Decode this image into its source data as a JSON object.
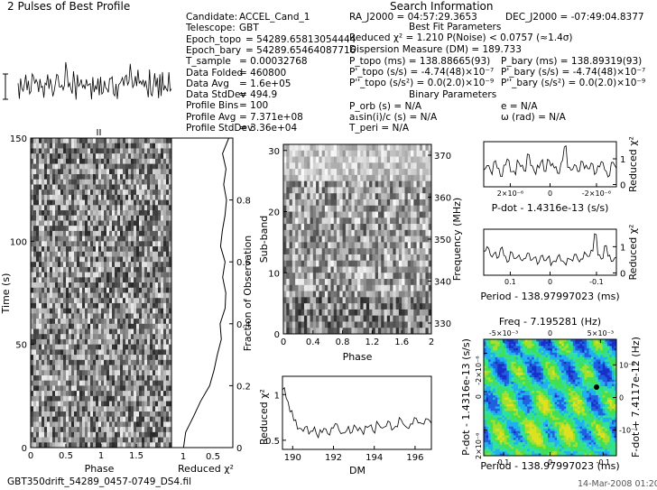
{
  "header": {
    "title": "2 Pulses of Best Profile",
    "search_info": "Search Information"
  },
  "params_left": [
    {
      "k": "Candidate:",
      "v": "ACCEL_Cand_1"
    },
    {
      "k": "Telescope:",
      "v": "GBT"
    },
    {
      "k": "Epoch_topo",
      "v": "= 54289.65813054444"
    },
    {
      "k": "Epoch_bary",
      "v": "= 54289.65464087716"
    },
    {
      "k": "T_sample",
      "v": "0.00032768"
    },
    {
      "k": "Data Folded",
      "v": "460800"
    },
    {
      "k": "Data Avg",
      "v": "1.6e+05"
    },
    {
      "k": "Data StdDev",
      "v": "494.9"
    },
    {
      "k": "Profile Bins",
      "v": "100"
    },
    {
      "k": "Profile Avg",
      "v": "7.371e+08"
    },
    {
      "k": "Profile StdDev",
      "v": "3.36e+04"
    }
  ],
  "params_right": {
    "ra": "RA_J2000 = 04:57:29.3653",
    "dec": "DEC_J2000 = -07:49:04.8377",
    "best_fit_title": "Best Fit Parameters",
    "chi2": "Reduced χ² = 1.210   P(Noise) < 0.0757   (≈1.4σ)",
    "dm": "Dispersion Measure (DM) = 189.733",
    "p_topo": "P_topo (ms) = 138.88665(93)",
    "pd_topo": "P'_topo (s/s) = -4.74(48)×10⁻⁷",
    "pdd_topo": "P''_topo (s/s²) = 0.0(2.0)×10⁻⁹",
    "p_bary": "P_bary (ms) = 138.89319(93)",
    "pd_bary": "P'_bary (s/s) = -4.74(48)×10⁻⁷",
    "pdd_bary": "P''_bary (s/s²) = 0.0(2.0)×10⁻⁹",
    "binary_title": "Binary Parameters",
    "porb": "P_orb (s) = N/A",
    "asini": "a₁sin(i)/c (s) = N/A",
    "tperi": "T_peri = N/A",
    "ecc": "e = N/A",
    "omega": "ω (rad) = N/A"
  },
  "footer": {
    "filename": "GBT350drift_54289_0457-0749_DS4.fil",
    "timestamp": "14-Mar-2008 01:20"
  },
  "colors": {
    "line": "#000000",
    "map_low": "#1030d0",
    "map_mid": "#20c0f0",
    "map_high": "#30e060",
    "map_peak": "#e0e020"
  },
  "chart_data": [
    {
      "id": "profile",
      "type": "line",
      "title": "2 Pulses of Best Profile",
      "x": "phase 0-2",
      "note": "noisy pulse profile, two cycles",
      "values": [
        0.2,
        -0.4,
        0.8,
        0.1,
        -0.6,
        0.3,
        1.2,
        -0.2,
        0.5,
        -0.9,
        0.4,
        0.0,
        1.6,
        -0.3,
        0.7,
        0.2,
        -0.5,
        1.0,
        -0.1,
        0.3,
        -0.8,
        0.6,
        0.2,
        1.4,
        -0.4,
        0.1,
        0.9,
        -0.6,
        0.3,
        -0.2,
        0.5,
        1.1,
        -0.3,
        0.0,
        0.7,
        -0.5,
        0.2,
        1.3,
        0.4,
        -0.7,
        0.6,
        0.1,
        -0.2,
        0.9,
        0.3,
        -0.4,
        1.0,
        0.2,
        -0.1,
        0.5
      ]
    },
    {
      "id": "time_phase",
      "type": "heatmap",
      "xlabel": "Phase",
      "ylabel": "Time (s)",
      "xlim": [
        0,
        2
      ],
      "ylim": [
        0,
        150
      ],
      "xticks": [
        "0",
        "0.5",
        "1",
        "1.5"
      ],
      "yticks": [
        "0",
        "50",
        "100",
        "150"
      ]
    },
    {
      "id": "time_chi2",
      "type": "line",
      "xlabel": "Reduced χ²",
      "ylabel_right": "Fraction of Observation",
      "yticks_right": [
        "0",
        "0.2",
        "0.4",
        "0.6",
        "0.8"
      ],
      "xticks": [
        "1",
        "0.5"
      ],
      "y": [
        0,
        0.05,
        0.1,
        0.15,
        0.2,
        0.25,
        0.3,
        0.35,
        0.4,
        0.45,
        0.5,
        0.55,
        0.6,
        0.65,
        0.7,
        0.75,
        0.8,
        0.85,
        0.9,
        0.95,
        1.0
      ],
      "x": [
        0.2,
        0.3,
        0.5,
        0.8,
        1.0,
        1.2,
        1.3,
        1.4,
        1.4,
        1.5,
        1.5,
        1.4,
        1.5,
        1.4,
        1.4,
        1.5,
        1.6,
        1.5,
        1.6,
        1.5,
        1.6
      ]
    },
    {
      "id": "subband_phase",
      "type": "heatmap",
      "xlabel": "Phase",
      "ylabel": "Sub-band",
      "ylabel_right": "Frequency (MHz)",
      "xlim": [
        0,
        2
      ],
      "ylim": [
        0,
        31
      ],
      "xticks": [
        "0",
        "0.4",
        "0.8",
        "1.2",
        "1.6",
        "2"
      ],
      "yticks": [
        "0",
        "10",
        "20",
        "30"
      ],
      "yticks_right": [
        "330",
        "340",
        "350",
        "360",
        "370"
      ]
    },
    {
      "id": "dm_chi2",
      "type": "line",
      "xlabel": "DM",
      "ylabel": "Reduced χ²",
      "xlim": [
        189.5,
        196.8
      ],
      "ylim": [
        0.4,
        1.2
      ],
      "xticks": [
        "190",
        "192",
        "194",
        "196"
      ],
      "yticks": [
        "0.5",
        "1"
      ],
      "values": [
        1.05,
        0.95,
        0.82,
        0.7,
        0.65,
        0.6,
        0.63,
        0.58,
        0.62,
        0.55,
        0.6,
        0.64,
        0.58,
        0.62,
        0.66,
        0.6,
        0.57,
        0.63,
        0.6,
        0.65,
        0.62,
        0.58,
        0.66,
        0.64,
        0.6,
        0.68,
        0.62,
        0.66,
        0.7,
        0.64,
        0.66,
        0.72,
        0.68,
        0.65,
        0.7,
        0.74,
        0.7,
        0.68,
        0.72,
        0.7
      ]
    },
    {
      "id": "pdot_chi2",
      "type": "line",
      "xlabel": "P-dot - 1.4316e-13 (s/s)",
      "ylabel": "Reduced χ²",
      "xticks": [
        "2×10⁻⁶",
        "0",
        "-2×10⁻⁶"
      ],
      "yticks": [
        "0",
        "1"
      ],
      "values": [
        0.6,
        0.8,
        0.5,
        0.9,
        0.7,
        0.4,
        0.8,
        1.0,
        0.6,
        0.5,
        0.9,
        0.7,
        0.6,
        1.1,
        0.8,
        0.5,
        0.7,
        0.9,
        0.6,
        1.0,
        0.8,
        0.7,
        0.5,
        0.9,
        1.4,
        0.7,
        0.6,
        0.8,
        0.5,
        0.9,
        0.7,
        0.6,
        0.8,
        0.5,
        0.7,
        0.9,
        0.6,
        0.4,
        0.8,
        0.7
      ]
    },
    {
      "id": "period_chi2",
      "type": "line",
      "xlabel": "Period - 138.97997023 (ms)",
      "ylabel": "Reduced χ²",
      "xticks": [
        "0.1",
        "0",
        "-0.1"
      ],
      "yticks": [
        "0",
        "1"
      ],
      "values": [
        0.9,
        1.0,
        0.7,
        0.8,
        0.6,
        0.9,
        0.7,
        0.5,
        0.8,
        0.6,
        0.7,
        0.5,
        0.6,
        0.8,
        0.5,
        0.6,
        0.4,
        0.7,
        0.5,
        0.6,
        0.4,
        0.5,
        0.7,
        0.5,
        0.4,
        0.6,
        0.5,
        0.7,
        0.5,
        0.6,
        0.8,
        0.6,
        0.9,
        1.4,
        0.7,
        0.6,
        1.0,
        0.7,
        0.5,
        0.6
      ]
    },
    {
      "id": "period_pdot_map",
      "type": "heatmap",
      "title": "Freq - 7.195281 (Hz)",
      "xlabel": "Period - 138.97997023 (ms)",
      "ylabel": "P-dot - 1.4316e-13 (s/s)",
      "ylabel_right": "F-dot + 7.4117e-12 (Hz)",
      "xticks": [
        "0.1",
        "0",
        "-0.1"
      ],
      "xticks_top": [
        "-5×10⁻³",
        "0",
        "5×10⁻³"
      ],
      "yticks": [
        "-2×10⁻⁶",
        "0",
        "2×10⁻⁶"
      ],
      "yticks_right": [
        "10⁻⁴",
        "0",
        "-10⁻⁴"
      ]
    }
  ]
}
